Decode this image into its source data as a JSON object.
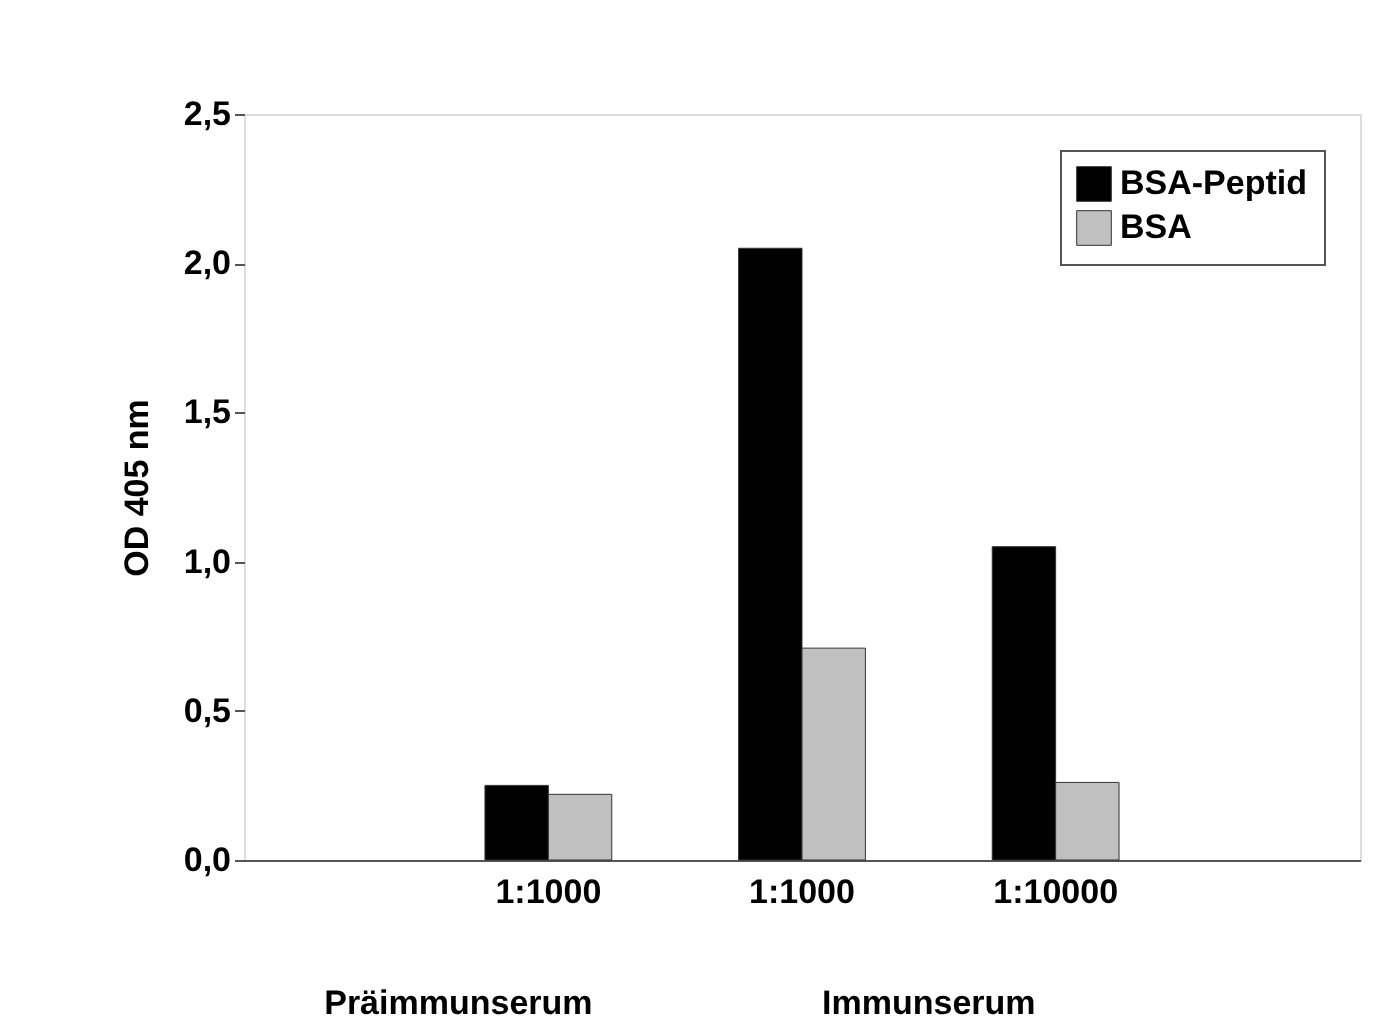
{
  "chart_data": {
    "type": "bar",
    "ylabel": "OD 405 nm",
    "categories": [
      "1:1000",
      "1:1000",
      "1:10000"
    ],
    "series": [
      {
        "name": "BSA-Peptid",
        "color": "#000000",
        "values": [
          0.25,
          2.05,
          1.05
        ]
      },
      {
        "name": "BSA",
        "color": "#c0c0c0",
        "values": [
          0.22,
          0.71,
          0.26
        ]
      }
    ],
    "ylim": [
      0,
      2.5
    ],
    "yticks": [
      {
        "value": 0,
        "label": "0,0"
      },
      {
        "value": 0.5,
        "label": "0,5"
      },
      {
        "value": 1,
        "label": "1,0"
      },
      {
        "value": 1.5,
        "label": "1,5"
      },
      {
        "value": 2,
        "label": "2,0"
      },
      {
        "value": 2.5,
        "label": "2,5"
      }
    ],
    "annotations": [
      "Präimmunserum",
      "Immunserum"
    ],
    "grid": false,
    "legend": "top right"
  }
}
